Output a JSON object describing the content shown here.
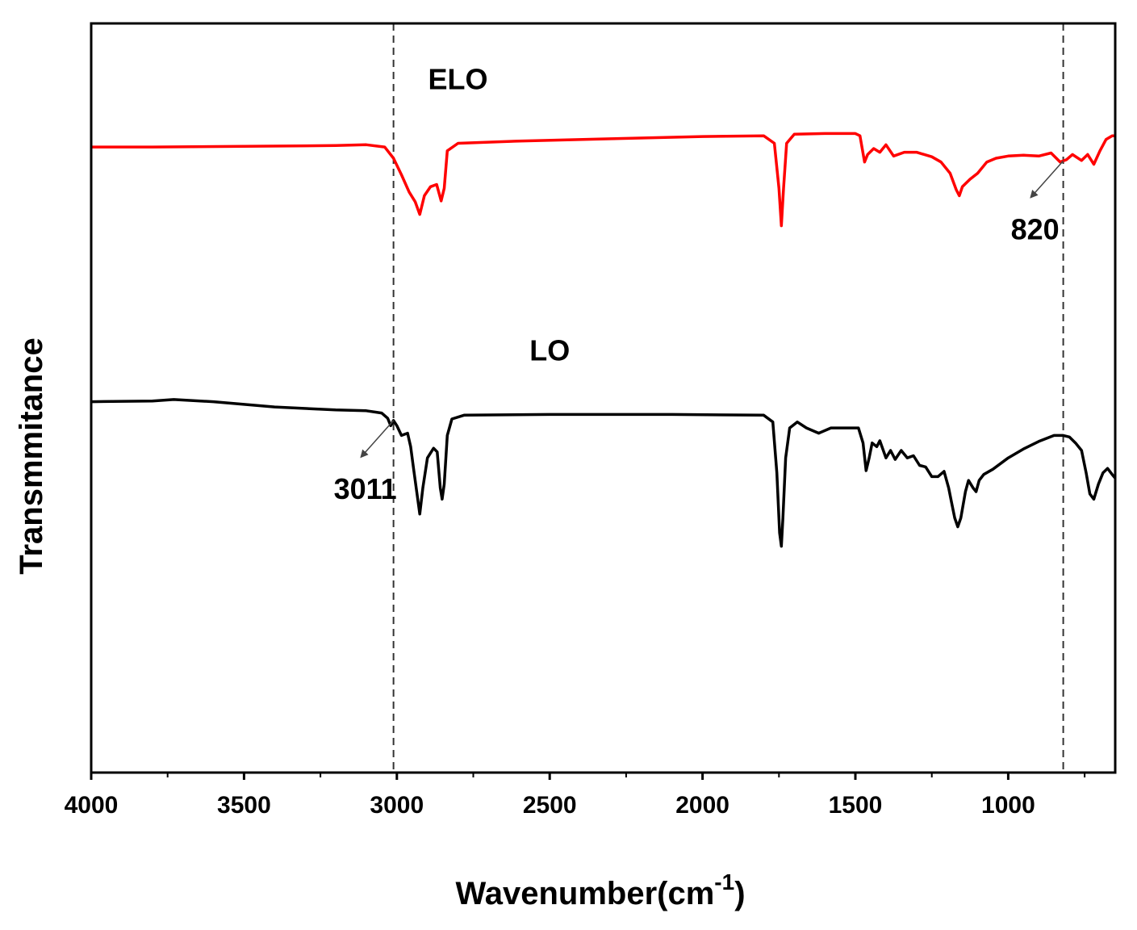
{
  "chart_data": {
    "type": "line",
    "title": "",
    "xlabel": "Wavenumber(cm",
    "xlabel_superscript": "-1",
    "xlabel_close": ")",
    "ylabel": "Transmmitance",
    "xlim": [
      4000,
      650
    ],
    "x_reversed": true,
    "ylim": [
      0,
      100
    ],
    "y_ticks_shown": false,
    "grid": false,
    "x_ticks": [
      4000,
      3500,
      3000,
      2500,
      2000,
      1500,
      1000
    ],
    "x_minor_ticks": [
      3750,
      3250,
      2750,
      2250,
      1750,
      1250,
      750
    ],
    "reference_lines": [
      {
        "x": 3011,
        "style": "dashed"
      },
      {
        "x": 820,
        "style": "dashed"
      }
    ],
    "annotations": [
      {
        "text": "3011",
        "target_x": 3011,
        "target_series": "LO"
      },
      {
        "text": "820",
        "target_x": 820,
        "target_series": "ELO"
      }
    ],
    "series": [
      {
        "name": "ELO",
        "color": "#ff0000",
        "points": [
          [
            4000,
            83.5
          ],
          [
            3800,
            83.5
          ],
          [
            3500,
            83.6
          ],
          [
            3200,
            83.7
          ],
          [
            3100,
            83.8
          ],
          [
            3040,
            83.5
          ],
          [
            3011,
            82.0
          ],
          [
            2985,
            79.8
          ],
          [
            2960,
            77.5
          ],
          [
            2940,
            76.2
          ],
          [
            2925,
            74.5
          ],
          [
            2910,
            77.0
          ],
          [
            2890,
            78.2
          ],
          [
            2870,
            78.5
          ],
          [
            2855,
            76.3
          ],
          [
            2845,
            78.0
          ],
          [
            2835,
            83.0
          ],
          [
            2800,
            84.0
          ],
          [
            2600,
            84.3
          ],
          [
            2300,
            84.6
          ],
          [
            2000,
            84.9
          ],
          [
            1800,
            85.0
          ],
          [
            1765,
            84.0
          ],
          [
            1750,
            78.0
          ],
          [
            1742,
            73.0
          ],
          [
            1735,
            78.0
          ],
          [
            1725,
            84.0
          ],
          [
            1700,
            85.2
          ],
          [
            1600,
            85.3
          ],
          [
            1500,
            85.3
          ],
          [
            1485,
            85.0
          ],
          [
            1470,
            81.5
          ],
          [
            1460,
            82.5
          ],
          [
            1440,
            83.3
          ],
          [
            1420,
            82.8
          ],
          [
            1400,
            83.8
          ],
          [
            1375,
            82.3
          ],
          [
            1340,
            82.8
          ],
          [
            1300,
            82.8
          ],
          [
            1250,
            82.2
          ],
          [
            1220,
            81.5
          ],
          [
            1190,
            80.0
          ],
          [
            1170,
            77.8
          ],
          [
            1160,
            77.0
          ],
          [
            1150,
            78.2
          ],
          [
            1125,
            79.2
          ],
          [
            1100,
            80.0
          ],
          [
            1070,
            81.5
          ],
          [
            1040,
            82.0
          ],
          [
            1000,
            82.3
          ],
          [
            950,
            82.4
          ],
          [
            900,
            82.3
          ],
          [
            860,
            82.7
          ],
          [
            830,
            81.5
          ],
          [
            810,
            81.8
          ],
          [
            790,
            82.5
          ],
          [
            760,
            81.7
          ],
          [
            740,
            82.5
          ],
          [
            720,
            81.2
          ],
          [
            700,
            83.0
          ],
          [
            680,
            84.5
          ],
          [
            660,
            85.0
          ],
          [
            650,
            85.0
          ]
        ]
      },
      {
        "name": "LO",
        "color": "#000000",
        "points": [
          [
            4000,
            49.5
          ],
          [
            3800,
            49.6
          ],
          [
            3730,
            49.8
          ],
          [
            3600,
            49.5
          ],
          [
            3400,
            48.8
          ],
          [
            3200,
            48.4
          ],
          [
            3100,
            48.3
          ],
          [
            3050,
            48.0
          ],
          [
            3030,
            47.3
          ],
          [
            3020,
            46.3
          ],
          [
            3011,
            47.0
          ],
          [
            3000,
            46.3
          ],
          [
            2985,
            45.0
          ],
          [
            2965,
            45.3
          ],
          [
            2955,
            43.5
          ],
          [
            2945,
            40.5
          ],
          [
            2935,
            37.5
          ],
          [
            2925,
            34.5
          ],
          [
            2915,
            38.0
          ],
          [
            2900,
            42.0
          ],
          [
            2880,
            43.3
          ],
          [
            2868,
            42.8
          ],
          [
            2858,
            38.0
          ],
          [
            2852,
            36.5
          ],
          [
            2845,
            38.5
          ],
          [
            2835,
            45.0
          ],
          [
            2820,
            47.2
          ],
          [
            2780,
            47.7
          ],
          [
            2500,
            47.8
          ],
          [
            2100,
            47.8
          ],
          [
            1800,
            47.7
          ],
          [
            1770,
            46.8
          ],
          [
            1757,
            40.0
          ],
          [
            1748,
            32.0
          ],
          [
            1742,
            30.2
          ],
          [
            1737,
            34.0
          ],
          [
            1728,
            42.0
          ],
          [
            1715,
            46.0
          ],
          [
            1690,
            46.8
          ],
          [
            1660,
            46.0
          ],
          [
            1620,
            45.3
          ],
          [
            1580,
            46.0
          ],
          [
            1520,
            46.0
          ],
          [
            1490,
            46.0
          ],
          [
            1475,
            44.0
          ],
          [
            1465,
            40.3
          ],
          [
            1455,
            42.0
          ],
          [
            1445,
            44.0
          ],
          [
            1430,
            43.5
          ],
          [
            1420,
            44.3
          ],
          [
            1400,
            42.0
          ],
          [
            1385,
            43.0
          ],
          [
            1370,
            41.8
          ],
          [
            1350,
            43.0
          ],
          [
            1330,
            42.0
          ],
          [
            1310,
            42.3
          ],
          [
            1290,
            41.0
          ],
          [
            1270,
            40.8
          ],
          [
            1250,
            39.5
          ],
          [
            1230,
            39.5
          ],
          [
            1210,
            40.2
          ],
          [
            1195,
            38.0
          ],
          [
            1185,
            36.0
          ],
          [
            1175,
            34.0
          ],
          [
            1165,
            32.8
          ],
          [
            1155,
            34.0
          ],
          [
            1140,
            37.5
          ],
          [
            1130,
            39.0
          ],
          [
            1115,
            38.0
          ],
          [
            1105,
            37.5
          ],
          [
            1095,
            39.0
          ],
          [
            1080,
            39.8
          ],
          [
            1050,
            40.5
          ],
          [
            1000,
            42.0
          ],
          [
            950,
            43.2
          ],
          [
            900,
            44.2
          ],
          [
            850,
            45.0
          ],
          [
            820,
            45.0
          ],
          [
            800,
            44.8
          ],
          [
            780,
            44.0
          ],
          [
            760,
            43.0
          ],
          [
            745,
            40.0
          ],
          [
            733,
            37.2
          ],
          [
            720,
            36.5
          ],
          [
            705,
            38.5
          ],
          [
            690,
            40.0
          ],
          [
            675,
            40.6
          ],
          [
            660,
            39.8
          ],
          [
            650,
            39.3
          ]
        ]
      }
    ],
    "series_labels": [
      {
        "text": "ELO",
        "anchor_x": 2800,
        "anchor_y": 91.2
      },
      {
        "text": "LO",
        "anchor_x": 2500,
        "anchor_y": 55.0
      }
    ]
  }
}
